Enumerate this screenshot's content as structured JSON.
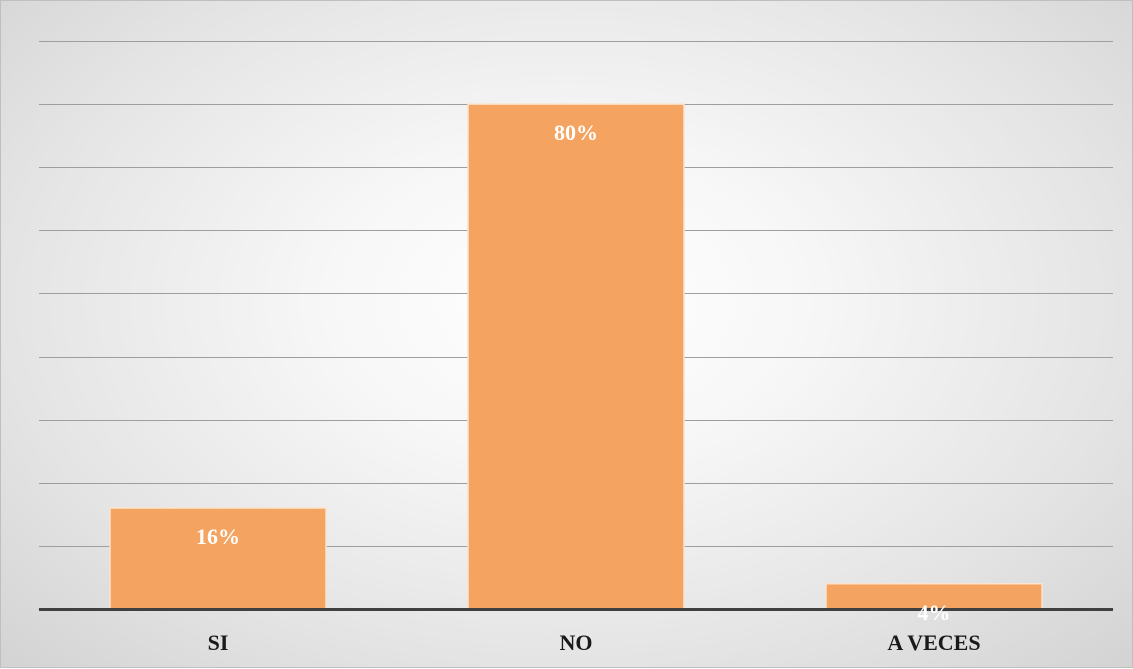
{
  "chart_data": {
    "type": "bar",
    "categories": [
      "SI",
      "NO",
      "A VECES"
    ],
    "values": [
      16,
      80,
      4
    ],
    "data_labels": [
      "16%",
      "80%",
      "4%"
    ],
    "ylim": [
      0,
      90
    ],
    "grid": true,
    "title": "",
    "xlabel": "",
    "ylabel": "",
    "colors": {
      "bar": "#F4A460",
      "bar_border": "#fbe3cc",
      "label": "#ffffff",
      "axis": "#404040",
      "grid": "#9e9e9e",
      "category_text": "#1a1a1a"
    }
  }
}
